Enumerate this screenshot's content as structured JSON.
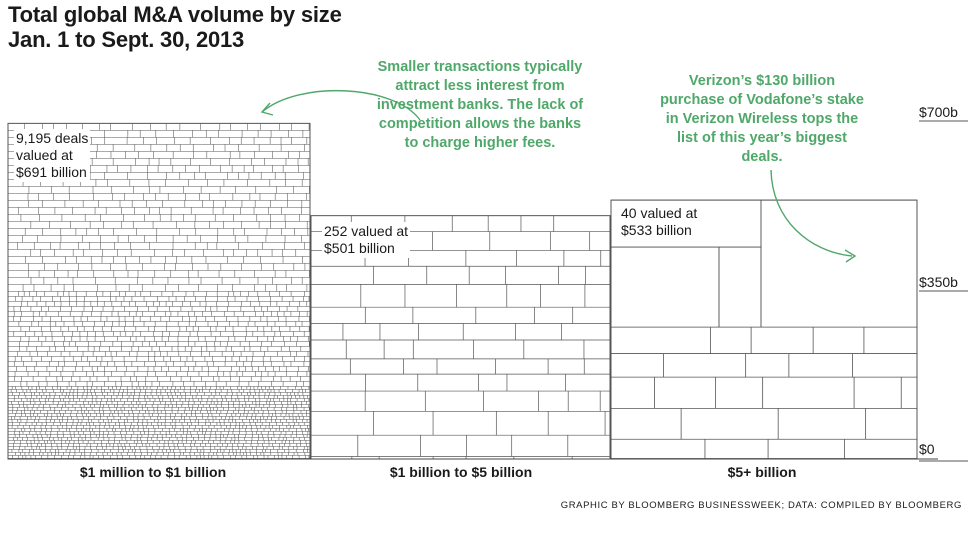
{
  "title_line1": "Total global M&A volume by size",
  "title_line2": "Jan. 1 to Sept. 30, 2013",
  "annotations": {
    "left": "Smaller transactions typically attract less interest from investment banks. The lack of competition allows the banks to charge higher fees.",
    "right": "Verizon’s $130 billion purchase of Vodafone’s stake in Verizon Wireless tops the list of this year’s biggest deals."
  },
  "colors": {
    "annotation": "#4fa86a",
    "lines": "#555555",
    "text": "#1a1a1a"
  },
  "source": "Graphic by Bloomberg Businessweek; Data: Compiled by Bloomberg",
  "chart_data": {
    "type": "treemap-bar",
    "title": "Total global M&A volume by size",
    "subtitle": "Jan. 1 to Sept. 30, 2013",
    "y_ticks": [
      "$700b",
      "$350b",
      "$0"
    ],
    "y_tick_values": [
      700,
      350,
      0
    ],
    "ylim": [
      0,
      700
    ],
    "categories": [
      "$1 million to $1 billion",
      "$1 billion to $5 billion",
      "$5+ billion"
    ],
    "deals": [
      9195,
      252,
      40
    ],
    "values_billion": [
      691,
      501,
      533
    ],
    "bar_labels": [
      [
        "9,195 deals",
        "valued at",
        "$691 billion"
      ],
      [
        "252 valued at",
        "$501 billion"
      ],
      [
        "40 valued at",
        "$533 billion"
      ]
    ]
  }
}
